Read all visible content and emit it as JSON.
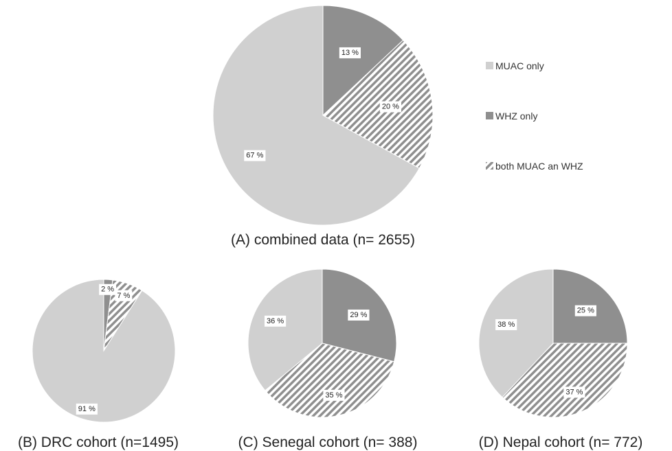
{
  "colors": {
    "muac_only": "#d0d0d0",
    "whz_only": "#8f8f8f",
    "both_base": "#ffffff",
    "both_hatch": "#8f8f8f"
  },
  "legend": [
    {
      "label": "MUAC only",
      "key": "muac_only",
      "pattern": false
    },
    {
      "label": "WHZ only",
      "key": "whz_only",
      "pattern": false
    },
    {
      "label": "both MUAC an WHZ",
      "key": "both",
      "pattern": true
    }
  ],
  "chart_data": [
    {
      "type": "pie",
      "id": "A",
      "caption": "(A) combined data (n= 2655)",
      "categories": [
        "WHZ only",
        "both MUAC an WHZ",
        "MUAC only"
      ],
      "values": [
        13,
        20,
        67
      ],
      "labels": [
        "13 %",
        "20 %",
        "67 %"
      ]
    },
    {
      "type": "pie",
      "id": "B",
      "caption": "(B) DRC cohort (n=1495)",
      "categories": [
        "WHZ only",
        "both MUAC an WHZ",
        "MUAC only"
      ],
      "values": [
        2,
        7,
        91
      ],
      "labels": [
        "2 %",
        "7 %",
        "91 %"
      ]
    },
    {
      "type": "pie",
      "id": "C",
      "caption": "(C) Senegal cohort (n= 388)",
      "categories": [
        "WHZ only",
        "both MUAC an WHZ",
        "MUAC only"
      ],
      "values": [
        29,
        35,
        36
      ],
      "labels": [
        "29 %",
        "35 %",
        "36 %"
      ]
    },
    {
      "type": "pie",
      "id": "D",
      "caption": "(D) Nepal cohort (n= 772)",
      "categories": [
        "WHZ only",
        "both MUAC an WHZ",
        "MUAC only"
      ],
      "values": [
        25,
        37,
        38
      ],
      "labels": [
        "25 %",
        "37 %",
        "38 %"
      ]
    }
  ]
}
